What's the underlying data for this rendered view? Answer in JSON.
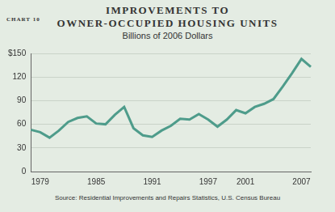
{
  "chart_data": {
    "type": "line",
    "title": [
      "IMPROVEMENTS TO",
      "OWNER-OCCUPIED HOUSING UNITS"
    ],
    "subtitle": "Billions of 2006 Dollars",
    "annotations": [
      "CHART 10"
    ],
    "source": "Source: Residential Improvements and Repairs Statistics, U.S. Census Bureau",
    "categories": [
      null,
      "1979",
      null,
      null,
      null,
      null,
      null,
      "1985",
      null,
      null,
      null,
      null,
      null,
      "1991",
      null,
      null,
      null,
      null,
      null,
      "1997",
      null,
      null,
      null,
      "2001",
      null,
      null,
      null,
      null,
      null,
      "2007",
      null
    ],
    "values": [
      53,
      50,
      43,
      52,
      63,
      68,
      70,
      61,
      60,
      72,
      82,
      55,
      46,
      44,
      52,
      58,
      67,
      66,
      73,
      66,
      57,
      66,
      78,
      74,
      82,
      86,
      92,
      108,
      125,
      143,
      133
    ],
    "color": "#4e9c8b",
    "ylim": [
      0,
      150
    ],
    "yticks": [
      0,
      30,
      60,
      90,
      120,
      {
        "value": 150,
        "label": "$150"
      }
    ],
    "grid": true
  }
}
